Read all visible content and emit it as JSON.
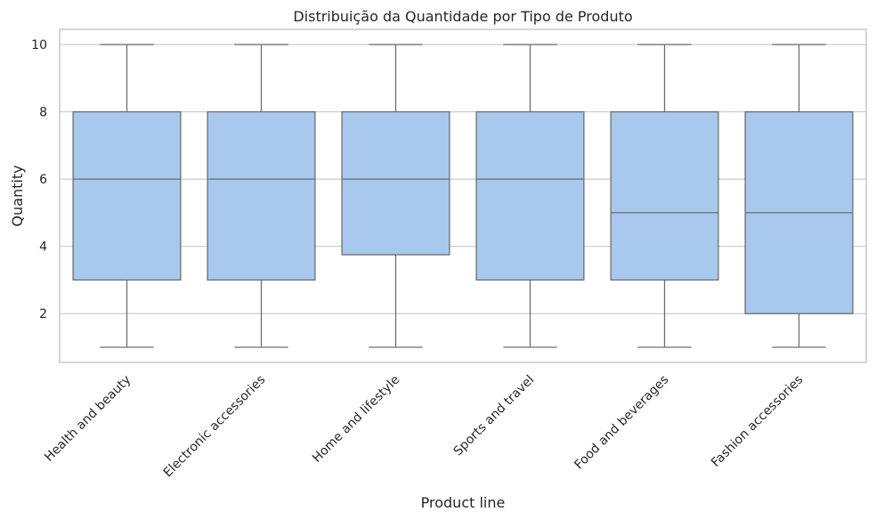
{
  "chart_data": {
    "type": "box",
    "title": "Distribuição da Quantidade por Tipo de Produto",
    "xlabel": "Product line",
    "ylabel": "Quantity",
    "categories": [
      "Health and beauty",
      "Electronic accessories",
      "Home and lifestyle",
      "Sports and travel",
      "Food and beverages",
      "Fashion accessories"
    ],
    "boxes": [
      {
        "min": 1,
        "q1": 3,
        "median": 6,
        "q3": 8,
        "max": 10
      },
      {
        "min": 1,
        "q1": 3,
        "median": 6,
        "q3": 8,
        "max": 10
      },
      {
        "min": 1,
        "q1": 3.75,
        "median": 6,
        "q3": 8,
        "max": 10
      },
      {
        "min": 1,
        "q1": 3,
        "median": 6,
        "q3": 8,
        "max": 10
      },
      {
        "min": 1,
        "q1": 3,
        "median": 5,
        "q3": 8,
        "max": 10
      },
      {
        "min": 1,
        "q1": 2,
        "median": 5,
        "q3": 8,
        "max": 10
      }
    ],
    "yticks": [
      2,
      4,
      6,
      8,
      10
    ],
    "ylim": [
      0.55,
      10.45
    ],
    "grid": true,
    "box_color": "#a8c8ed",
    "line_color": "#6e6e6e"
  }
}
